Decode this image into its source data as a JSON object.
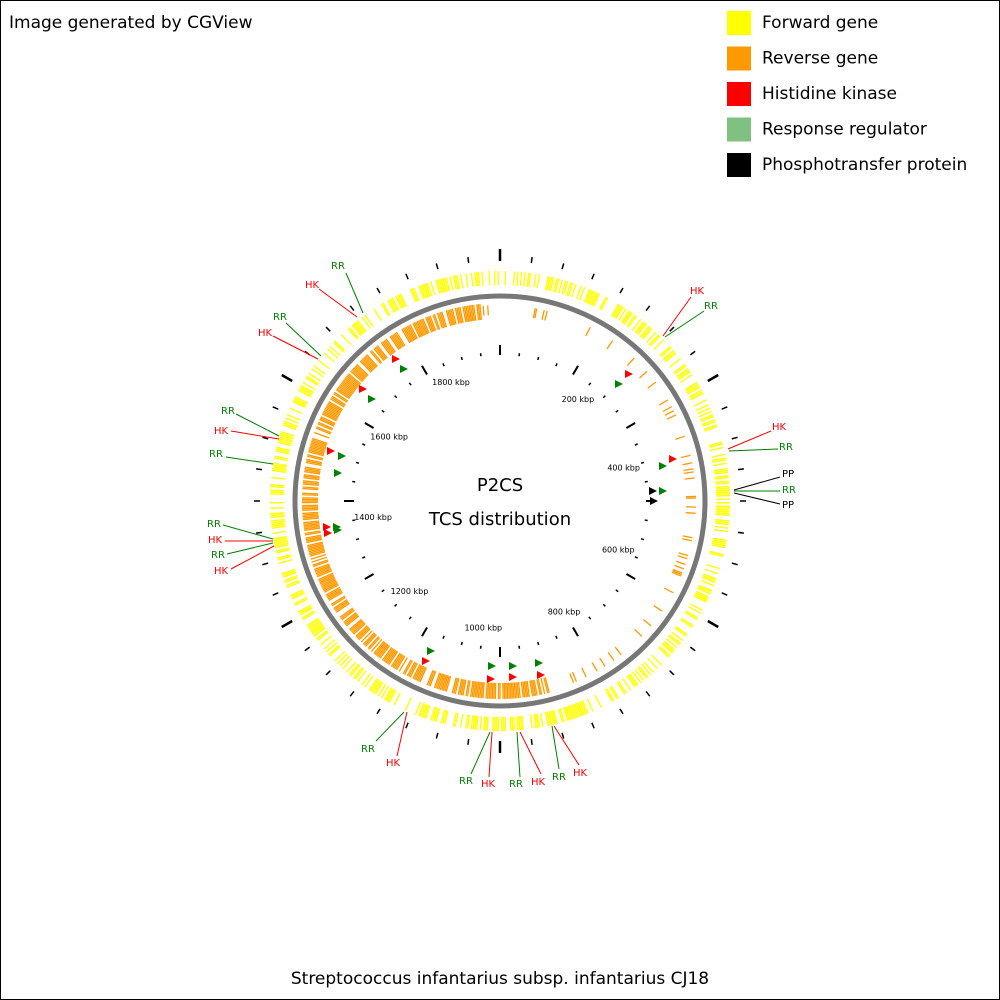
{
  "header": {
    "credit": "Image generated by CGView"
  },
  "legend": [
    {
      "label": "Forward gene",
      "color": "#ffff00"
    },
    {
      "label": "Reverse gene",
      "color": "#ff9900"
    },
    {
      "label": "Histidine kinase",
      "color": "#ff0000"
    },
    {
      "label": "Response regulator",
      "color": "#80c080"
    },
    {
      "label": "Phosphotransfer protein",
      "color": "#000000"
    }
  ],
  "center": {
    "title": "P2CS",
    "subtitle": "TCS distribution"
  },
  "ruler_labels": [
    "200 kbp",
    "400 kbp",
    "600 kbp",
    "800 kbp",
    "1000 kbp",
    "1200 kbp",
    "1400 kbp",
    "1600 kbp",
    "1800 kbp"
  ],
  "features": [
    {
      "label": "RR",
      "color": "#008000"
    },
    {
      "label": "HK",
      "color": "#ff0000"
    },
    {
      "label": "RR",
      "color": "#008000"
    },
    {
      "label": "HK",
      "color": "#ff0000"
    },
    {
      "label": "RR",
      "color": "#008000"
    },
    {
      "label": "HK",
      "color": "#ff0000"
    },
    {
      "label": "RR",
      "color": "#008000"
    },
    {
      "label": "RR",
      "color": "#008000"
    },
    {
      "label": "HK",
      "color": "#ff0000"
    },
    {
      "label": "RR",
      "color": "#008000"
    },
    {
      "label": "HK",
      "color": "#ff0000"
    },
    {
      "label": "HK",
      "color": "#ff0000"
    },
    {
      "label": "RR",
      "color": "#008000"
    },
    {
      "label": "HK",
      "color": "#ff0000"
    },
    {
      "label": "RR",
      "color": "#008000"
    },
    {
      "label": "PP",
      "color": "#000000"
    },
    {
      "label": "RR",
      "color": "#008000"
    },
    {
      "label": "PP",
      "color": "#000000"
    },
    {
      "label": "RR",
      "color": "#008000"
    },
    {
      "label": "HK",
      "color": "#ff0000"
    },
    {
      "label": "RR",
      "color": "#008000"
    },
    {
      "label": "HK",
      "color": "#ff0000"
    },
    {
      "label": "RR",
      "color": "#008000"
    },
    {
      "label": "HK",
      "color": "#ff0000"
    },
    {
      "label": "RR",
      "color": "#008000"
    },
    {
      "label": "HK",
      "color": "#ff0000"
    }
  ],
  "footer": {
    "organism": "Streptococcus infantarius subsp. infantarius CJ18"
  }
}
